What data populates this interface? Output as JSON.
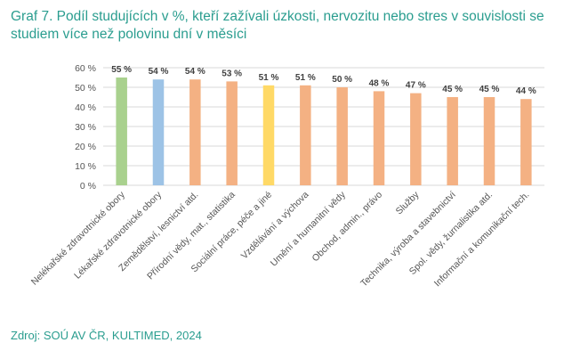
{
  "title": "Graf 7. Podíl studujících v %, kteří zažívali úzkosti, nervozitu nebo stres v souvislosti se studiem více než polovinu dní v měsíci",
  "source": "Zdroj: SOÚ AV ČR, KULTIMED, 2024",
  "colors": {
    "title": "#2a9d8f",
    "grid": "#d9d9d9",
    "default_bar": "#f4b183"
  },
  "chart_data": {
    "type": "bar",
    "title": "Graf 7. Podíl studujících v %, kteří zažívali úzkosti, nervozitu nebo stres v souvislosti se studiem více než polovinu dní v měsíci",
    "categories": [
      "Nelékařské zdravotnické obory",
      "Lékařské zdravotnické obory",
      "Zemědělství, lesnictví atd.",
      "Přírodní vědy, mat., statistika",
      "Sociální práce, péče a jiné",
      "Vzdělávání a výchova",
      "Umění a humanitní vědy",
      "Obchod, admin., právo",
      "Služby",
      "Technika, výroba a stavebnictví",
      "Spol. vědy, žurnalistika atd.",
      "Informační a komunikační tech."
    ],
    "values": [
      55,
      54,
      54,
      53,
      51,
      51,
      50,
      48,
      47,
      45,
      45,
      44
    ],
    "value_labels": [
      "55 %",
      "54 %",
      "54 %",
      "53 %",
      "51 %",
      "51 %",
      "50 %",
      "48 %",
      "47 %",
      "45 %",
      "45 %",
      "44 %"
    ],
    "bar_colors": [
      "#a9d18e",
      "#9dc3e6",
      "#f4b183",
      "#f4b183",
      "#ffd966",
      "#f4b183",
      "#f4b183",
      "#f4b183",
      "#f4b183",
      "#f4b183",
      "#f4b183",
      "#f4b183"
    ],
    "y_ticks": [
      "0 %",
      "10 %",
      "20 %",
      "30 %",
      "40 %",
      "50 %",
      "60 %"
    ],
    "ylim": [
      0,
      60
    ],
    "grid": true,
    "legend": "none",
    "xlabel": "",
    "ylabel": ""
  }
}
